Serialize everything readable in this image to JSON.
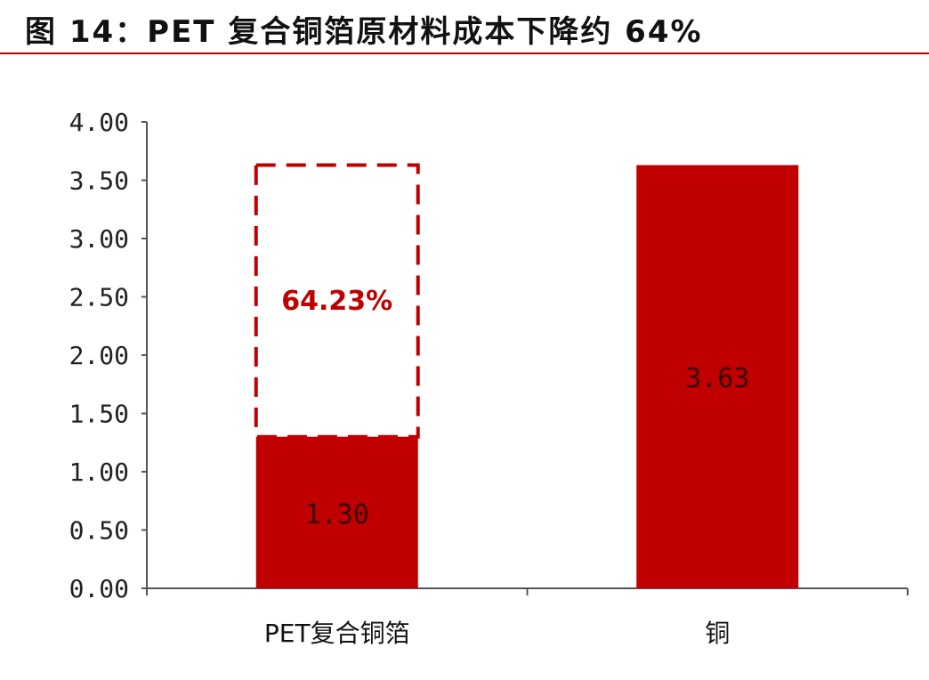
{
  "header": {
    "title": "图 14：PET 复合铜箔原材料成本下降约 64%"
  },
  "colors": {
    "bar": "#c00000",
    "accent": "#c00000",
    "axis": "#555555"
  },
  "chart_data": {
    "type": "bar",
    "title": "图 14：PET 复合铜箔原材料成本下降约 64%",
    "xlabel": "",
    "ylabel": "",
    "ylim": [
      0,
      4
    ],
    "yticks": [
      "0.00",
      "0.50",
      "1.00",
      "1.50",
      "2.00",
      "2.50",
      "3.00",
      "3.50",
      "4.00"
    ],
    "ytick_values": [
      0,
      0.5,
      1,
      1.5,
      2,
      2.5,
      3,
      3.5,
      4
    ],
    "grid": false,
    "categories": [
      "PET复合铜箔",
      "铜"
    ],
    "values": [
      1.3,
      3.63
    ],
    "data_labels": [
      "1.30",
      "3.63"
    ],
    "annotation": {
      "label": "64.23%",
      "category_index": 0,
      "from": 1.3,
      "to": 3.63,
      "style": "dashed-outline"
    }
  }
}
